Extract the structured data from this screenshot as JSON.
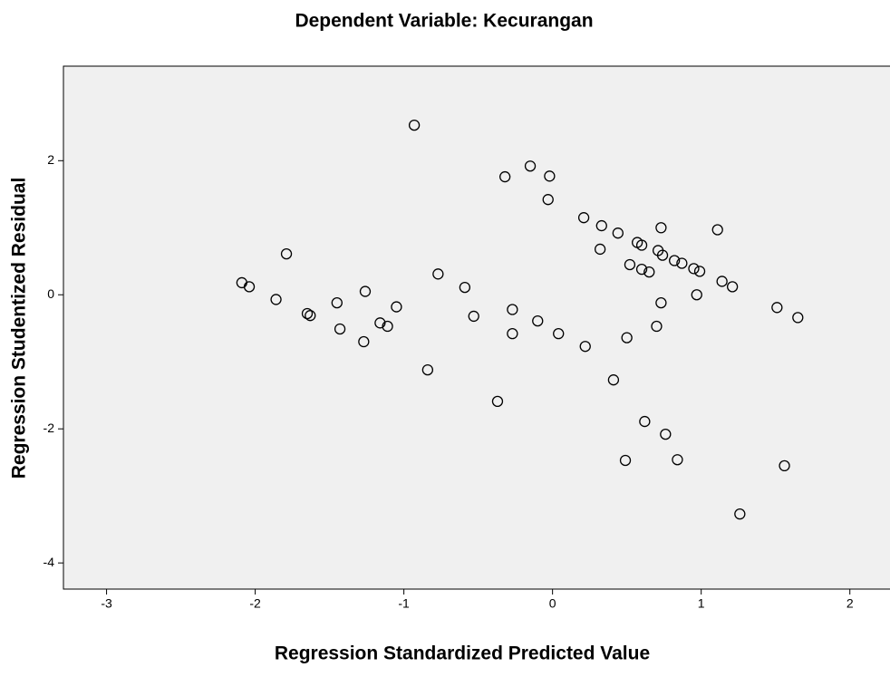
{
  "chart_data": {
    "type": "scatter",
    "title": "Dependent Variable: Kecurangan",
    "xlabel": "Regression Standardized Predicted Value",
    "ylabel": "Regression Studentized Residual",
    "color": "#000000",
    "background": "#f0f0f0",
    "xlim": [
      -3.29,
      2.27
    ],
    "xticks": [
      -3,
      -2,
      -1,
      0,
      1,
      2
    ],
    "ylim": [
      -4.39,
      3.41
    ],
    "yticks": [
      -4,
      -2,
      0,
      2
    ],
    "x": [
      -0.93,
      -0.32,
      -0.15,
      -0.02,
      -0.03,
      0.21,
      0.33,
      0.44,
      0.73,
      1.11,
      0.57,
      0.6,
      0.32,
      0.71,
      0.74,
      0.82,
      0.87,
      0.52,
      0.6,
      0.65,
      0.95,
      0.99,
      1.14,
      1.21,
      0.97,
      0.73,
      1.51,
      1.65,
      0.7,
      0.5,
      0.04,
      -0.1,
      -0.27,
      -0.27,
      -0.53,
      -0.59,
      -0.77,
      -1.05,
      -1.26,
      -1.45,
      -1.43,
      -1.11,
      -1.16,
      -1.27,
      -1.65,
      -1.63,
      -1.86,
      -1.79,
      -2.09,
      -2.04,
      -0.84,
      0.22,
      0.41,
      -0.37,
      0.62,
      0.76,
      0.49,
      0.84,
      1.56,
      1.26
    ],
    "y": [
      2.53,
      1.76,
      1.92,
      1.77,
      1.42,
      1.15,
      1.03,
      0.92,
      1.0,
      0.97,
      0.78,
      0.74,
      0.68,
      0.66,
      0.59,
      0.51,
      0.47,
      0.45,
      0.38,
      0.34,
      0.39,
      0.35,
      0.2,
      0.12,
      0.0,
      -0.12,
      -0.19,
      -0.34,
      -0.47,
      -0.64,
      -0.58,
      -0.39,
      -0.22,
      -0.58,
      -0.32,
      0.11,
      0.31,
      -0.18,
      0.05,
      -0.12,
      -0.51,
      -0.47,
      -0.42,
      -0.7,
      -0.28,
      -0.31,
      -0.07,
      0.61,
      0.18,
      0.12,
      -1.12,
      -0.77,
      -1.27,
      -1.59,
      -1.89,
      -2.08,
      -2.47,
      -2.46,
      -2.55,
      -3.27
    ]
  }
}
